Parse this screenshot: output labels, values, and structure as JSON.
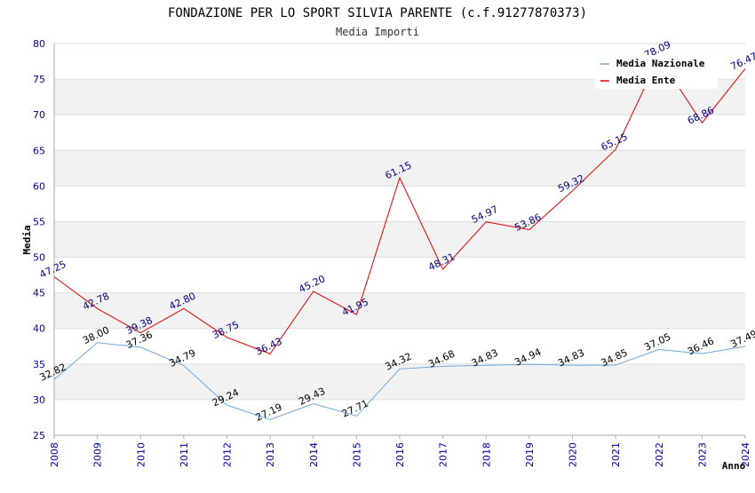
{
  "chart_data": {
    "type": "line",
    "title": "FONDAZIONE PER LO SPORT SILVIA PARENTE (c.f.91277870373)",
    "subtitle": "Media Importi",
    "xlabel": "Anno",
    "ylabel": "Media",
    "ylim": [
      25,
      80
    ],
    "yticks": [
      25,
      30,
      35,
      40,
      45,
      50,
      55,
      60,
      65,
      70,
      75,
      80
    ],
    "categories": [
      "2008",
      "2009",
      "2010",
      "2011",
      "2012",
      "2013",
      "2014",
      "2015",
      "2016",
      "2017",
      "2018",
      "2019",
      "2020",
      "2021",
      "2022",
      "2023",
      "2024"
    ],
    "series": [
      {
        "name": "Media Nazionale",
        "color": "#6fa8dc",
        "label_color": "#000000",
        "values": [
          32.82,
          38.0,
          37.36,
          34.79,
          29.24,
          27.19,
          29.43,
          27.71,
          34.32,
          34.68,
          34.83,
          34.94,
          34.83,
          34.85,
          37.05,
          36.46,
          37.49
        ],
        "labels": [
          "32.82",
          "38.00",
          "37.36",
          "34.79",
          "29.24",
          "27.19",
          "29.43",
          "27.71",
          "34.32",
          "34.68",
          "34.83",
          "34.94",
          "34.83",
          "34.85",
          "37.05",
          "36.46",
          "37.49"
        ]
      },
      {
        "name": "Media Ente",
        "color": "#e00000",
        "label_color": "#000080",
        "values": [
          47.25,
          42.78,
          39.38,
          42.8,
          38.75,
          36.43,
          45.2,
          41.95,
          61.15,
          48.31,
          54.97,
          53.86,
          59.32,
          65.15,
          78.09,
          68.86,
          76.47
        ],
        "labels": [
          "47.25",
          "42.78",
          "39.38",
          "42.80",
          "38.75",
          "36.43",
          "45.20",
          "41.95",
          "61.15",
          "48.31",
          "54.97",
          "53.86",
          "59.32",
          "65.15",
          "78.09",
          "68.86",
          "76.47"
        ]
      }
    ],
    "grid": true,
    "legend_position": "top-right",
    "colors": {
      "band": "#f2f2f2",
      "grid": "#dddddd",
      "tick": "#0000a0"
    }
  }
}
